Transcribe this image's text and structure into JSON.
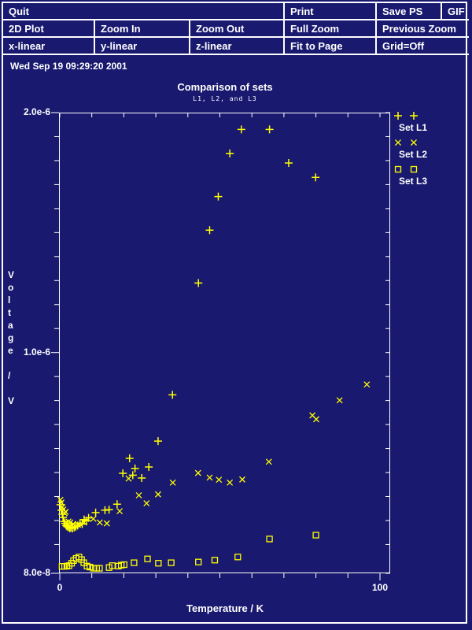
{
  "colors": {
    "background": "#191970",
    "foreground": "#ffffff",
    "marker": "#ffff00"
  },
  "menu": {
    "row1": [
      "Quit",
      "Print",
      "Save PS",
      "GIF"
    ],
    "row2": [
      "2D Plot",
      "Zoom In",
      "Zoom Out",
      "Full Zoom",
      "Previous Zoom"
    ],
    "row3": [
      "x-linear",
      "y-linear",
      "z-linear",
      "Fit to Page",
      "Grid=Off"
    ]
  },
  "status": {
    "datetime": "Wed Sep 19 09:29:20 2001"
  },
  "chart_data": {
    "type": "scatter",
    "title": "Comparison of sets",
    "subtitle": "L1, L2, and L3",
    "xlabel": "Temperature / K",
    "ylabel": "Voltage / V",
    "marker_color": "#ffff00",
    "grid": "off",
    "legend_position": "right-top",
    "x_axis": {
      "min": 0,
      "max": 103.2,
      "tick_step": 10,
      "labeled_ticks": [
        {
          "value": 0,
          "label": "0"
        },
        {
          "value": 100,
          "label": "100"
        }
      ]
    },
    "y_axis": {
      "min": 8e-08,
      "max": 2e-06,
      "tick_step": 1e-07,
      "labeled_ticks": [
        {
          "value": 2e-06,
          "label": "2.0e-6"
        },
        {
          "value": 1e-06,
          "label": "1.0e-6"
        },
        {
          "value": 8e-08,
          "label": "8.0e-8"
        }
      ]
    },
    "series": [
      {
        "name": "Set L1",
        "marker": "plus",
        "points": [
          [
            0.2,
            3.66e-07
          ],
          [
            0.5,
            3.43e-07
          ],
          [
            0.8,
            3.26e-07
          ],
          [
            1.0,
            3.13e-07
          ],
          [
            1.3,
            2.96e-07
          ],
          [
            1.6,
            2.88e-07
          ],
          [
            2.0,
            2.79e-07
          ],
          [
            2.3,
            2.75e-07
          ],
          [
            2.7,
            2.72e-07
          ],
          [
            3.1,
            2.68e-07
          ],
          [
            3.5,
            2.7e-07
          ],
          [
            4.0,
            2.67e-07
          ],
          [
            4.5,
            2.71e-07
          ],
          [
            5.0,
            2.74e-07
          ],
          [
            5.6,
            2.79e-07
          ],
          [
            6.3,
            2.89e-07
          ],
          [
            7.0,
            2.85e-07
          ],
          [
            7.6,
            3.04e-07
          ],
          [
            8.4,
            2.99e-07
          ],
          [
            9.0,
            3.11e-07
          ],
          [
            11.2,
            3.33e-07
          ],
          [
            14.1,
            3.43e-07
          ],
          [
            15.4,
            3.45e-07
          ],
          [
            17.9,
            3.68e-07
          ],
          [
            19.7,
            4.97e-07
          ],
          [
            21.8,
            5.59e-07
          ],
          [
            22.8,
            4.89e-07
          ],
          [
            23.5,
            5.17e-07
          ],
          [
            25.6,
            4.77e-07
          ],
          [
            27.8,
            5.23e-07
          ],
          [
            30.7,
            6.31e-07
          ],
          [
            35.2,
            8.24e-07
          ],
          [
            43.3,
            1.29e-06
          ],
          [
            46.8,
            1.51e-06
          ],
          [
            49.5,
            1.65e-06
          ],
          [
            53.1,
            1.83e-06
          ],
          [
            56.7,
            1.93e-06
          ],
          [
            65.5,
            1.93e-06
          ],
          [
            71.5,
            1.79e-06
          ],
          [
            79.9,
            1.73e-06
          ]
        ]
      },
      {
        "name": "Set L2",
        "marker": "cross",
        "points": [
          [
            0.2,
            3.86e-07
          ],
          [
            0.5,
            3.75e-07
          ],
          [
            0.8,
            3.56e-07
          ],
          [
            1.1,
            3.46e-07
          ],
          [
            1.5,
            3.3e-07
          ],
          [
            1.8,
            3.36e-07
          ],
          [
            2.7,
            2.96e-07
          ],
          [
            3.3,
            2.92e-07
          ],
          [
            4.2,
            2.86e-07
          ],
          [
            5.7,
            2.83e-07
          ],
          [
            7.6,
            2.92e-07
          ],
          [
            10.5,
            3.07e-07
          ],
          [
            12.5,
            2.92e-07
          ],
          [
            14.7,
            2.88e-07
          ],
          [
            18.7,
            3.39e-07
          ],
          [
            21.5,
            4.75e-07
          ],
          [
            24.7,
            4.05e-07
          ],
          [
            27.1,
            3.72e-07
          ],
          [
            30.7,
            4.09e-07
          ],
          [
            35.3,
            4.58e-07
          ],
          [
            43.2,
            4.98e-07
          ],
          [
            46.8,
            4.79e-07
          ],
          [
            49.7,
            4.7e-07
          ],
          [
            53.1,
            4.58e-07
          ],
          [
            57.0,
            4.71e-07
          ],
          [
            65.3,
            5.45e-07
          ],
          [
            78.9,
            7.38e-07
          ],
          [
            80.1,
            7.22e-07
          ],
          [
            87.4,
            8.01e-07
          ],
          [
            95.9,
            8.67e-07
          ]
        ]
      },
      {
        "name": "Set L3",
        "marker": "square",
        "points": [
          [
            0.7,
            1.09e-07
          ],
          [
            1.5,
            1.09e-07
          ],
          [
            2.2,
            1.1e-07
          ],
          [
            2.9,
            1.12e-07
          ],
          [
            3.7,
            1.22e-07
          ],
          [
            4.3,
            1.33e-07
          ],
          [
            5.1,
            1.42e-07
          ],
          [
            6.0,
            1.48e-07
          ],
          [
            6.8,
            1.37e-07
          ],
          [
            7.5,
            1.24e-07
          ],
          [
            8.5,
            1.1e-07
          ],
          [
            9.4,
            1.06e-07
          ],
          [
            10.5,
            1.01e-07
          ],
          [
            11.5,
            1.01e-07
          ],
          [
            12.4,
            1.01e-07
          ],
          [
            15.4,
            1.04e-07
          ],
          [
            16.4,
            1.12e-07
          ],
          [
            18.3,
            1.1e-07
          ],
          [
            19.2,
            1.14e-07
          ],
          [
            20.1,
            1.16e-07
          ],
          [
            23.2,
            1.24e-07
          ],
          [
            27.4,
            1.4e-07
          ],
          [
            30.8,
            1.22e-07
          ],
          [
            34.8,
            1.24e-07
          ],
          [
            43.3,
            1.27e-07
          ],
          [
            48.4,
            1.35e-07
          ],
          [
            55.6,
            1.48e-07
          ],
          [
            65.5,
            2.23e-07
          ],
          [
            80.0,
            2.39e-07
          ]
        ]
      }
    ]
  }
}
